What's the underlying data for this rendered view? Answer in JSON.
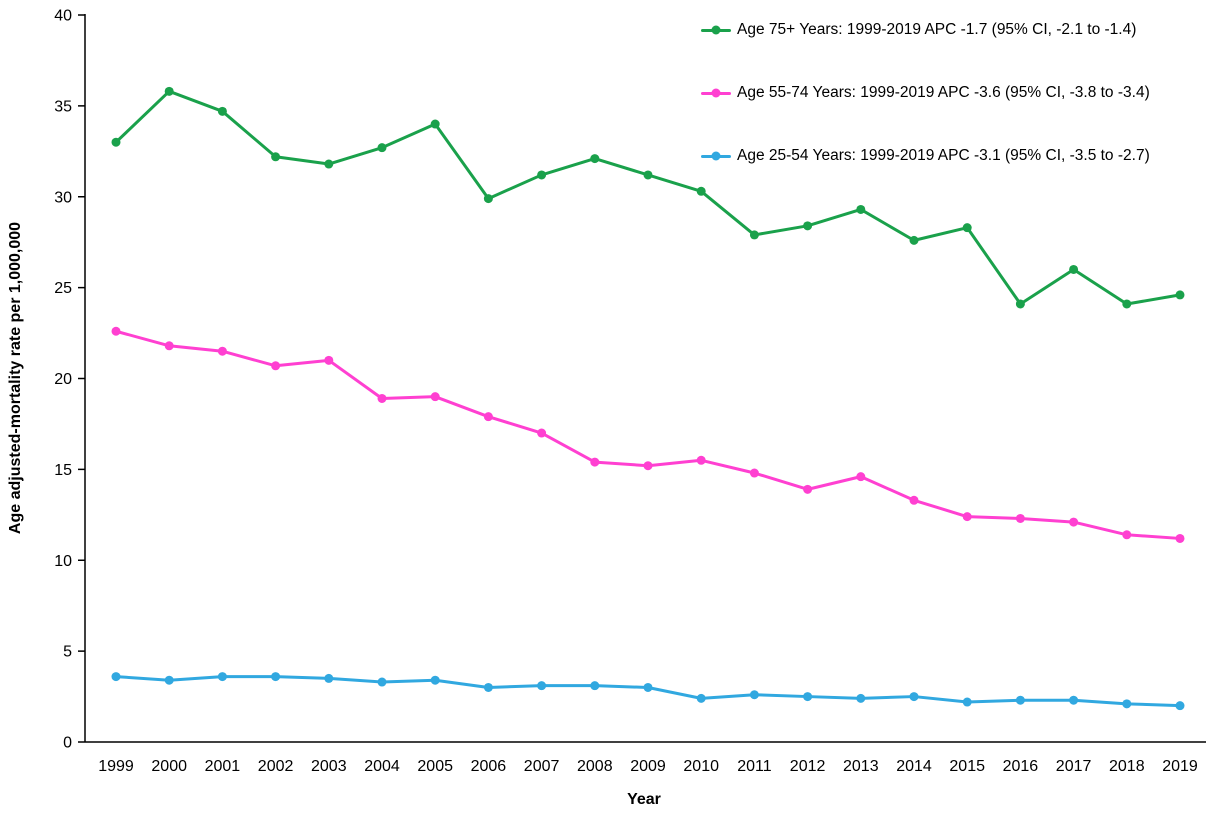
{
  "chart_data": {
    "type": "line",
    "title": "",
    "xlabel": "Year",
    "ylabel": "Age adjusted-mortality rate per 1,000,000",
    "ylim": [
      0,
      40
    ],
    "ytick_step": 5,
    "grid": false,
    "legend_position": "top-right",
    "x": [
      1999,
      2000,
      2001,
      2002,
      2003,
      2004,
      2005,
      2006,
      2007,
      2008,
      2009,
      2010,
      2011,
      2012,
      2013,
      2014,
      2015,
      2016,
      2017,
      2018,
      2019
    ],
    "series": [
      {
        "id": "age-75plus",
        "name": "Age 75+ Years: 1999-2019 APC -1.7 (95% CI, -2.1 to -1.4)",
        "color": "#1aa14b",
        "values": [
          33.0,
          35.8,
          34.7,
          32.2,
          31.8,
          32.7,
          34.0,
          29.9,
          31.2,
          32.1,
          31.2,
          30.3,
          27.9,
          28.4,
          29.3,
          27.6,
          28.3,
          24.1,
          26.0,
          24.1,
          24.6
        ]
      },
      {
        "id": "age-55-74",
        "name": "Age 55-74 Years: 1999-2019 APC -3.6 (95% CI, -3.8 to -3.4)",
        "color": "#ff40d1",
        "values": [
          22.6,
          21.8,
          21.5,
          20.7,
          21.0,
          18.9,
          19.0,
          17.9,
          17.0,
          15.4,
          15.2,
          15.5,
          14.8,
          13.9,
          14.6,
          13.3,
          12.4,
          12.3,
          12.1,
          11.4,
          11.2
        ]
      },
      {
        "id": "age-25-54",
        "name": "Age 25-54 Years: 1999-2019 APC -3.1 (95% CI, -3.5 to -2.7)",
        "color": "#31a8e0",
        "values": [
          3.6,
          3.4,
          3.6,
          3.6,
          3.5,
          3.3,
          3.4,
          3.0,
          3.1,
          3.1,
          3.0,
          2.4,
          2.6,
          2.5,
          2.4,
          2.5,
          2.2,
          2.3,
          2.3,
          2.1,
          2.0
        ]
      }
    ]
  }
}
